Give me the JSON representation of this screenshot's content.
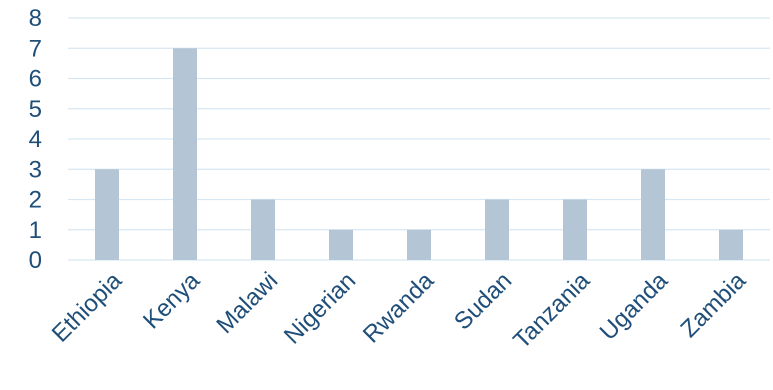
{
  "chart_data": {
    "type": "bar",
    "title": "",
    "xlabel": "",
    "ylabel": "",
    "categories": [
      "Ethiopia",
      "Kenya",
      "Malawi",
      "Nigerian",
      "Rwanda",
      "Sudan",
      "Tanzania",
      "Uganda",
      "Zambia"
    ],
    "values": [
      3,
      7,
      2,
      1,
      1,
      2,
      2,
      3,
      1
    ],
    "ylim": [
      0,
      8
    ],
    "yticks": [
      "0",
      "1",
      "2",
      "3",
      "4",
      "5",
      "6",
      "7",
      "8"
    ],
    "grid": true,
    "legend": "none",
    "colors": {
      "bar": "#b4c5d5",
      "grid": "#d6e6f2",
      "text": "#1f4e79"
    }
  }
}
